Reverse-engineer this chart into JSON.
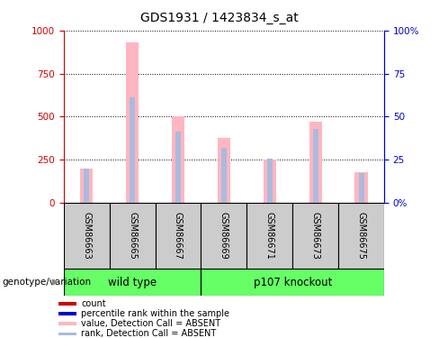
{
  "title": "GDS1931 / 1423834_s_at",
  "samples": [
    "GSM86663",
    "GSM86665",
    "GSM86667",
    "GSM86669",
    "GSM86671",
    "GSM86673",
    "GSM86675"
  ],
  "value_bars": [
    200,
    930,
    500,
    375,
    250,
    470,
    180
  ],
  "rank_bars": [
    200,
    610,
    415,
    320,
    255,
    430,
    175
  ],
  "ylim_left": [
    0,
    1000
  ],
  "ylim_right": [
    0,
    100
  ],
  "yticks_left": [
    0,
    250,
    500,
    750,
    1000
  ],
  "yticks_right": [
    0,
    25,
    50,
    75,
    100
  ],
  "left_tick_labels": [
    "0",
    "250",
    "500",
    "750",
    "1000"
  ],
  "right_tick_labels": [
    "0%",
    "25",
    "50",
    "75",
    "100%"
  ],
  "value_bar_color": "#FFB6C1",
  "rank_bar_color": "#AABBDD",
  "left_axis_color": "#CC0000",
  "right_axis_color": "#0000CC",
  "group_label": "genotype/variation",
  "groups": [
    {
      "label": "wild type",
      "span": [
        0,
        3
      ]
    },
    {
      "label": "p107 knockout",
      "span": [
        3,
        7
      ]
    }
  ],
  "group_color": "#66FF66",
  "sample_box_color": "#CCCCCC",
  "legend_items": [
    {
      "label": "count",
      "color": "#CC0000"
    },
    {
      "label": "percentile rank within the sample",
      "color": "#0000CC"
    },
    {
      "label": "value, Detection Call = ABSENT",
      "color": "#FFB6C1"
    },
    {
      "label": "rank, Detection Call = ABSENT",
      "color": "#AABBDD"
    }
  ]
}
